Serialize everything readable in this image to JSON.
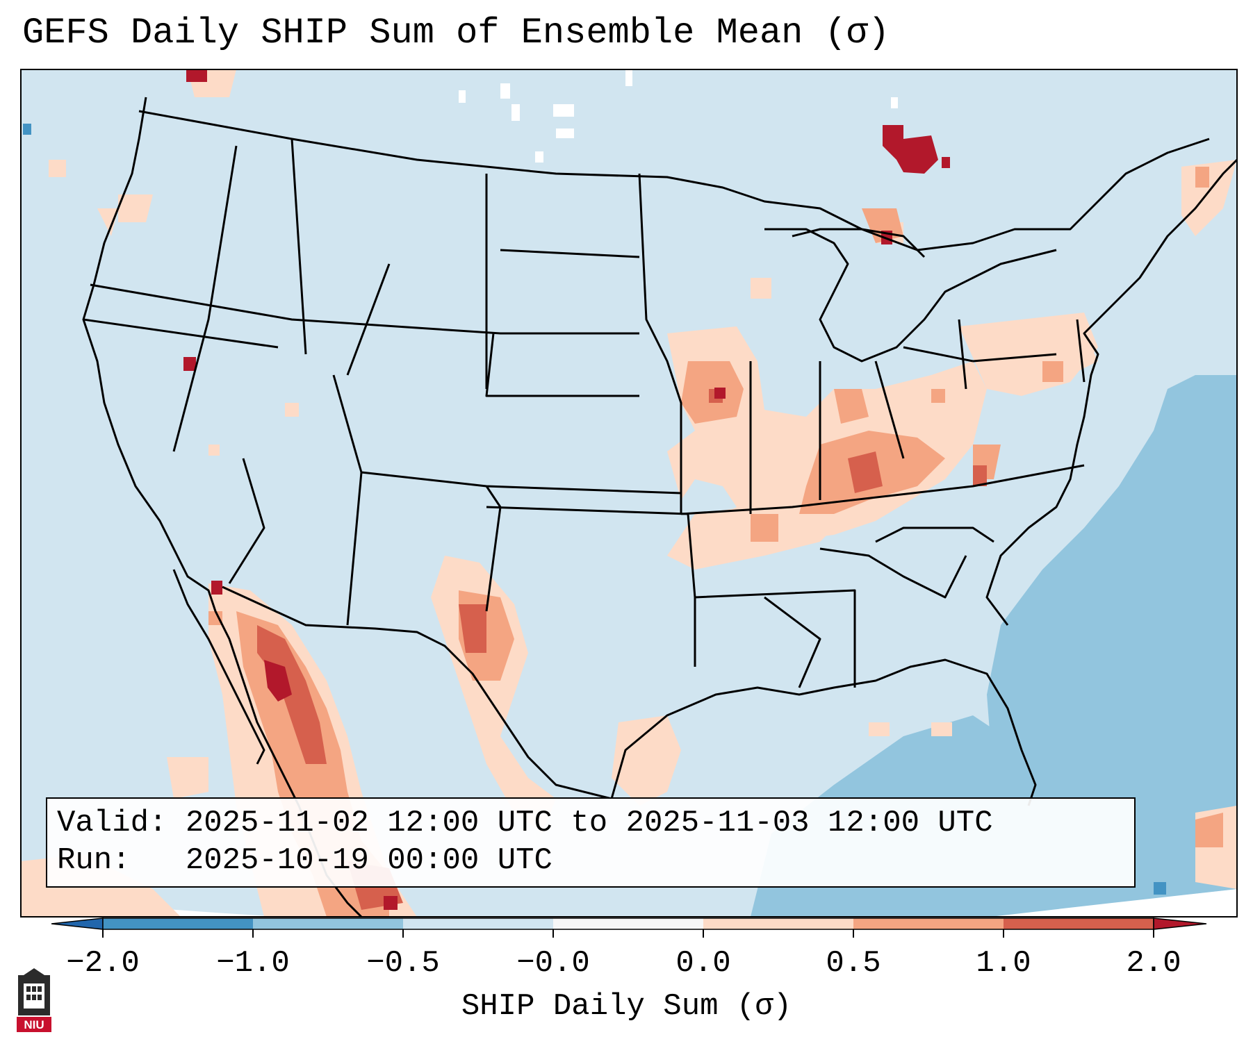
{
  "title": "GEFS Daily SHIP Sum of Ensemble Mean (σ)",
  "info": {
    "valid_line": "Valid: 2025-11-02 12:00 UTC to 2025-11-03 12:00 UTC",
    "run_line": "Run:   2025-10-19 00:00 UTC"
  },
  "colorbar": {
    "label": "SHIP Daily Sum (σ)",
    "ticks": [
      "−2.0",
      "−1.0",
      "−0.5",
      "−0.0",
      "0.0",
      "0.5",
      "1.0",
      "2.0"
    ],
    "colors": [
      "#4393c3",
      "#92c5de",
      "#d1e5f0",
      "#f7f7f7",
      "#fddbc7",
      "#f4a582",
      "#d6604d",
      "#b2182b"
    ],
    "extend": "both"
  },
  "map": {
    "ocean_color": "#d1e5f0",
    "border_color": "#000000"
  },
  "logo": {
    "text": "NIU",
    "color": "#c8102e"
  }
}
